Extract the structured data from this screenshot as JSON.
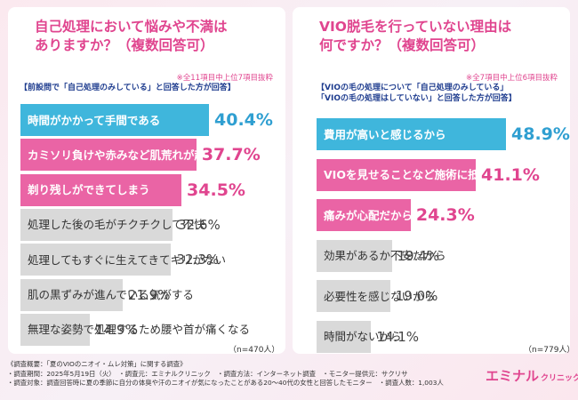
{
  "chart_data": [
    {
      "type": "bar",
      "orientation": "horizontal",
      "title_lines": [
        "自己処理において悩みや不満は",
        "ありますか？（複数回答可）"
      ],
      "note": "※全11項目中上位7項目抜粋",
      "question_lines": [
        "【前設問で「自己処理のみしている」と回答した方が回答】"
      ],
      "categories": [
        [
          "時間がかかって手間である"
        ],
        [
          "カミソリ負けや",
          "赤みなど肌荒れが起きる"
        ],
        [
          "剃り残しができてしまう"
        ],
        [
          "処理した後の毛が",
          "チクチクして不快"
        ],
        [
          "処理してもすぐに",
          "生えてきてキリがない"
        ],
        [
          "肌の黒ずみが",
          "進んでいる気がする"
        ],
        [
          "無理な姿勢で処理するため",
          "腰や首が痛くなる"
        ]
      ],
      "values": [
        40.4,
        37.7,
        34.5,
        32.6,
        32.3,
        21.9,
        14.9
      ],
      "value_labels": [
        "40.4%",
        "37.7%",
        "34.5%",
        "32.6%",
        "32.3%",
        "21.9%",
        "14.9%"
      ],
      "n_label": "（n=470人）"
    },
    {
      "type": "bar",
      "orientation": "horizontal",
      "title_lines": [
        "VIO脱毛を行っていない理由は",
        "何ですか？（複数回答可）"
      ],
      "note": "※全7項目中上位6項目抜粋",
      "question_lines": [
        "【VIOの毛の処理について「自己処理のみしている」",
        "「VIOの毛の処理はしていない」と回答した方が回答】"
      ],
      "categories": [
        [
          "費用が高いと感じるから"
        ],
        [
          "VIOを見せることなど",
          "施術に抵抗があるから"
        ],
        [
          "痛みが心配だから"
        ],
        [
          "効果があるか不安だから"
        ],
        [
          "必要性を感じないから"
        ],
        [
          "時間がないから"
        ]
      ],
      "values": [
        48.9,
        41.1,
        24.3,
        19.4,
        19.0,
        14.1
      ],
      "value_labels": [
        "48.9%",
        "41.1%",
        "24.3%",
        "19.4%",
        "19.0%",
        "14.1%"
      ],
      "n_label": "（n=779人）"
    }
  ],
  "colors": {
    "pink": "#e0458f",
    "pink_bar": "#ea64a5",
    "blue_bar": "#3fb6dc",
    "blue_text": "#2f9fd1",
    "navy": "#1f3d8f",
    "gray_bar": "#d9d9d9"
  },
  "footer": {
    "lines": [
      "《調査概要：「夏のVIOのニオイ・ムレ対策」に関する調査》",
      "・調査期間：2025年5月19日（火）　・調査元：エミナルクリニック　・調査方法：インターネット調査　・モニター提供元：サクリサ",
      "・調査対象：調査回答時に夏の季節に自分の体臭や汗のニオイが気になったことがある20〜40代の女性と回答したモニター　・調査人数：1,003人"
    ]
  },
  "logo": {
    "text": "エミナル",
    "sub": "クリニック"
  }
}
